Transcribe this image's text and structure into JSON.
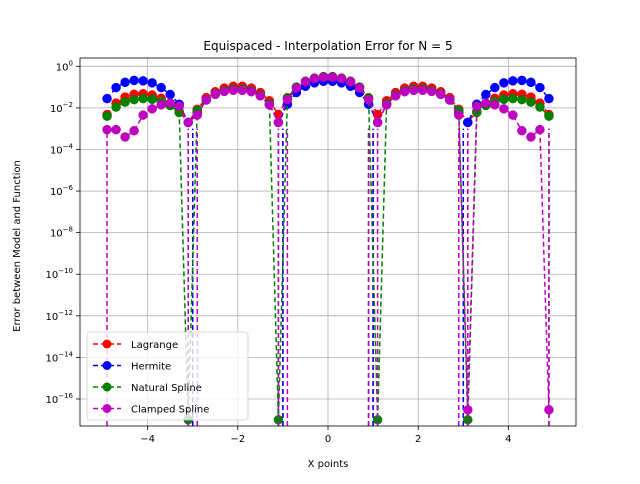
{
  "chart_data": {
    "type": "scatter",
    "title": "Equispaced - Interpolation Error for N = 5",
    "xlabel": "X points",
    "ylabel": "Error between Model and Function",
    "xlim": [
      -5.5,
      5.5
    ],
    "ylim_log10": [
      -17.3,
      0.4
    ],
    "yscale": "log",
    "grid": true,
    "legend_position": "lower-left",
    "x_ticks": [
      -4,
      -2,
      0,
      2,
      4
    ],
    "x_tick_labels": [
      "−4",
      "−2",
      "0",
      "2",
      "4"
    ],
    "y_ticks_log10": [
      0,
      -2,
      -4,
      -6,
      -8,
      -10,
      -12,
      -14,
      -16
    ],
    "y_tick_labels": [
      "10^0",
      "10^-2",
      "10^-4",
      "10^-6",
      "10^-8",
      "10^-10",
      "10^-12",
      "10^-14",
      "10^-16"
    ],
    "y_tick_label_parts": [
      {
        "base": "10",
        "exp": "0"
      },
      {
        "base": "10",
        "exp": "−2"
      },
      {
        "base": "10",
        "exp": "−4"
      },
      {
        "base": "10",
        "exp": "−6"
      },
      {
        "base": "10",
        "exp": "−8"
      },
      {
        "base": "10",
        "exp": "−10"
      },
      {
        "base": "10",
        "exp": "−12"
      },
      {
        "base": "10",
        "exp": "−14"
      },
      {
        "base": "10",
        "exp": "−16"
      }
    ],
    "x": [
      -4.9,
      -4.7,
      -4.5,
      -4.3,
      -4.1,
      -3.9,
      -3.7,
      -3.5,
      -3.3,
      -3.1,
      -2.9,
      -2.7,
      -2.5,
      -2.3,
      -2.1,
      -1.9,
      -1.7,
      -1.5,
      -1.3,
      -1.1,
      -0.9,
      -0.7,
      -0.5,
      -0.3,
      -0.1,
      0.1,
      0.3,
      0.5,
      0.7,
      0.9,
      1.1,
      1.3,
      1.5,
      1.7,
      1.9,
      2.1,
      2.3,
      2.5,
      2.7,
      2.9,
      3.1,
      3.3,
      3.5,
      3.7,
      3.9,
      4.1,
      4.3,
      4.5,
      4.7,
      4.9
    ],
    "series": [
      {
        "name": "Lagrange",
        "color": "#ff0000",
        "values": [
          0.0048,
          0.017,
          0.033,
          0.045,
          0.048,
          0.042,
          0.029,
          0.016,
          0.0068,
          0.002,
          0.0085,
          0.031,
          0.06,
          0.09,
          0.11,
          0.11,
          0.09,
          0.055,
          0.022,
          0.0048,
          0.031,
          0.1,
          0.19,
          0.27,
          0.32,
          0.32,
          0.27,
          0.19,
          0.1,
          0.031,
          0.0048,
          0.022,
          0.055,
          0.09,
          0.11,
          0.11,
          0.09,
          0.06,
          0.031,
          0.0085,
          0.002,
          0.0068,
          0.016,
          0.029,
          0.042,
          0.048,
          0.045,
          0.033,
          0.017,
          0.0048
        ]
      },
      {
        "name": "Hermite",
        "color": "#0000ff",
        "values": [
          0.028,
          0.095,
          0.17,
          0.21,
          0.2,
          0.16,
          0.095,
          0.044,
          0.015,
          0.002,
          0.006,
          0.024,
          0.045,
          0.065,
          0.077,
          0.078,
          0.065,
          0.04,
          0.015,
          0.002,
          0.015,
          0.055,
          0.11,
          0.16,
          0.19,
          0.19,
          0.16,
          0.11,
          0.055,
          0.015,
          0.002,
          0.015,
          0.04,
          0.065,
          0.078,
          0.077,
          0.065,
          0.045,
          0.024,
          0.006,
          0.002,
          0.015,
          0.044,
          0.095,
          0.16,
          0.2,
          0.21,
          0.17,
          0.095,
          0.028
        ]
      },
      {
        "name": "Natural Spline",
        "color": "#008000",
        "values": [
          0.004,
          0.011,
          0.019,
          0.025,
          0.028,
          0.026,
          0.02,
          0.013,
          0.006,
          1e-17,
          0.0075,
          0.026,
          0.048,
          0.068,
          0.08,
          0.08,
          0.066,
          0.042,
          0.016,
          1e-17,
          0.03,
          0.1,
          0.19,
          0.27,
          0.32,
          0.32,
          0.27,
          0.19,
          0.1,
          0.03,
          1e-17,
          0.016,
          0.042,
          0.066,
          0.08,
          0.08,
          0.068,
          0.048,
          0.026,
          0.0075,
          1e-17,
          0.006,
          0.013,
          0.02,
          0.026,
          0.028,
          0.025,
          0.019,
          0.011,
          0.004
        ]
      },
      {
        "name": "Clamped Spline",
        "color": "#bf00bf",
        "values": [
          0.0009,
          0.0009,
          0.0004,
          0.0008,
          0.0045,
          0.009,
          0.014,
          0.017,
          0.012,
          0.002,
          0.0045,
          0.025,
          0.045,
          0.062,
          0.07,
          0.07,
          0.06,
          0.038,
          0.014,
          0.002,
          0.025,
          0.09,
          0.18,
          0.26,
          0.3,
          0.3,
          0.26,
          0.18,
          0.09,
          0.025,
          0.002,
          0.014,
          0.038,
          0.06,
          0.07,
          0.07,
          0.062,
          0.045,
          0.025,
          0.0045,
          3e-17,
          0.012,
          0.017,
          0.014,
          0.009,
          0.0045,
          0.0008,
          0.0004,
          0.0009,
          3e-17
        ]
      }
    ],
    "stem_lines": [
      {
        "series": "Lagrange",
        "x": [
          -3.0,
          -1.0,
          1.0,
          3.0
        ]
      },
      {
        "series": "Hermite",
        "x": [
          -3.0,
          -1.0,
          1.0,
          3.0
        ]
      },
      {
        "series": "Natural Spline",
        "x": [
          -3.1,
          -1.1,
          0.9,
          2.9,
          3.1,
          4.9
        ]
      },
      {
        "series": "Clamped Spline",
        "x": [
          -4.9,
          -3.1,
          -2.9,
          -1.1,
          -0.9,
          0.9,
          1.1,
          2.9,
          3.1,
          4.9
        ]
      }
    ]
  }
}
